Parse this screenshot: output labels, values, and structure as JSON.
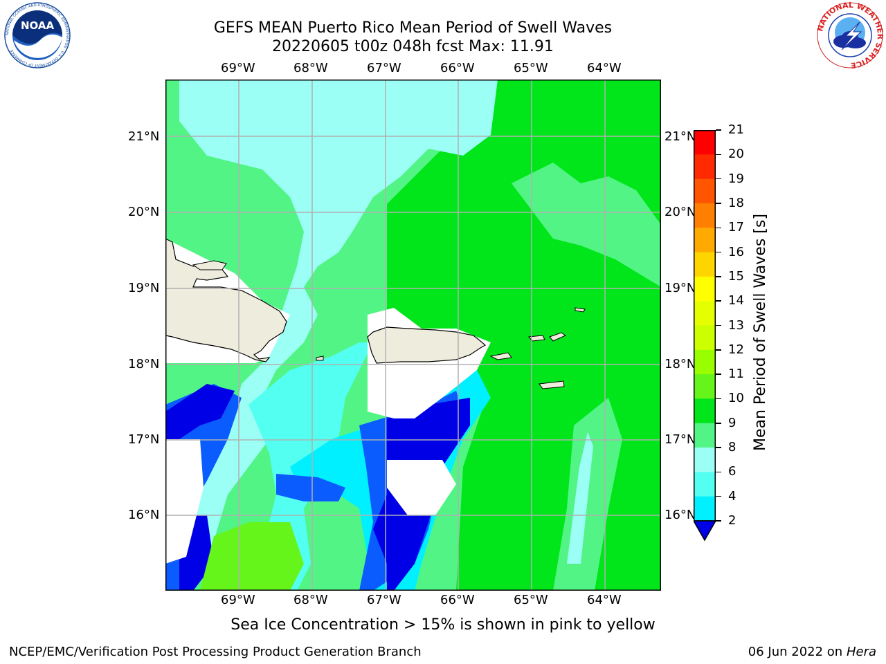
{
  "header": {
    "title_line1": "GEFS MEAN Puerto Rico Mean Period of Swell Waves",
    "title_line2": "20220605 t00z 048h fcst   Max: 11.91"
  },
  "logos": {
    "noaa": {
      "text": "NOAA",
      "ring_text": "NATIONAL OCEANIC AND ATMOSPHERIC ADMINISTRATION · U.S. DEPARTMENT OF COMMERCE ·",
      "icon": "noaa-logo-icon"
    },
    "nws": {
      "ring_text": "NATIONAL WEATHER SERVICE",
      "icon": "nws-logo-icon"
    }
  },
  "map": {
    "lon_labels": [
      "69°W",
      "68°W",
      "67°W",
      "66°W",
      "65°W",
      "64°W"
    ],
    "lat_labels": [
      "21°N",
      "20°N",
      "19°N",
      "18°N",
      "17°N",
      "16°N"
    ],
    "lon_range": [
      -70.0,
      -63.3
    ],
    "lat_range": [
      15.0,
      21.75
    ],
    "colors": {
      "land": "#eeecdc",
      "grid": "#b0b0b0",
      "level_2_4": "#0a5cff",
      "level_4_6": "#00f0ff",
      "level_6_8": "#52fff0",
      "level_8_9": "#9cfff6",
      "level_9_10": "#52f585",
      "level_10_11": "#00e61a",
      "level_11_12": "#66f51a",
      "below_2": "#0000e6"
    }
  },
  "colorbar": {
    "title": "Mean Period of Swell Waves [s]",
    "tick_labels": [
      "21",
      "20",
      "19",
      "18",
      "17",
      "16",
      "15",
      "14",
      "13",
      "12",
      "11",
      "10",
      "9",
      "8",
      "6",
      "4",
      "2"
    ],
    "colors": [
      "#ff0000",
      "#ff2a00",
      "#ff5500",
      "#ff8000",
      "#ffaa00",
      "#ffd500",
      "#ffff00",
      "#e6ff00",
      "#ccff00",
      "#99ff00",
      "#66f51a",
      "#00e61a",
      "#52f585",
      "#9cfff6",
      "#52fff0",
      "#00f0ff",
      "#0a5cff"
    ],
    "extend_color": "#0000e6"
  },
  "caption": "Sea Ice Concentration > 15% is shown in pink to yellow",
  "footer": {
    "left": "NCEP/EMC/Verification Post Processing Product Generation Branch",
    "right_prefix": "06 Jun 2022 on",
    "right_host": "Hera"
  }
}
